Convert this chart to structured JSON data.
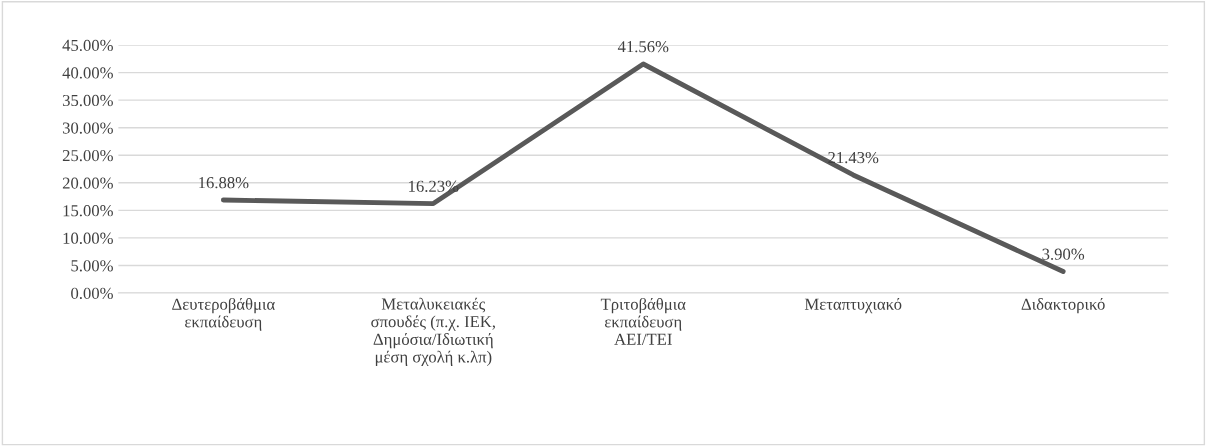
{
  "chart_data": {
    "type": "line",
    "categories": [
      "Δευτεροβάθμια\nεκπαίδευση",
      "Μεταλυκειακές\nσπουδές (π.χ. ΙΕΚ,\nΔημόσια/Ιδιωτική\nμέση σχολή κ.λπ)",
      "Τριτοβάθμια\nεκπαίδευση\nΑΕΙ/ΤΕΙ",
      "Μεταπτυχιακό",
      "Διδακτορικό"
    ],
    "series": [
      {
        "color": "#595959",
        "values": [
          16.88,
          16.23,
          41.56,
          21.43,
          3.9
        ],
        "value_labels": [
          "16.88%",
          "16.23%",
          "41.56%",
          "21.43%",
          "3.90%"
        ]
      }
    ],
    "ylim": [
      0,
      45
    ],
    "yticks": [
      {
        "value": 0,
        "label": "0.00%"
      },
      {
        "value": 5,
        "label": "5.00%"
      },
      {
        "value": 10,
        "label": "10.00%"
      },
      {
        "value": 15,
        "label": "15.00%"
      },
      {
        "value": 20,
        "label": "20.00%"
      },
      {
        "value": 25,
        "label": "25.00%"
      },
      {
        "value": 30,
        "label": "30.00%"
      },
      {
        "value": 35,
        "label": "35.00%"
      },
      {
        "value": 40,
        "label": "40.00%"
      },
      {
        "value": 45,
        "label": "45.00%"
      }
    ],
    "grid": "y",
    "marker": "none",
    "line_style": "solid",
    "legend": false
  }
}
